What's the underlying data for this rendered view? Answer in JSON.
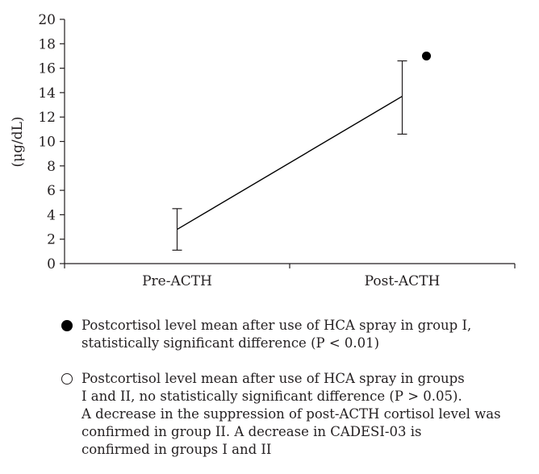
{
  "chart_data": {
    "type": "line",
    "categories": [
      "Pre-ACTH",
      "Post-ACTH"
    ],
    "series": [
      {
        "values": [
          2.8,
          13.7
        ],
        "error_low": [
          1.1,
          10.6
        ],
        "error_high": [
          4.5,
          16.6
        ],
        "color": "#000000"
      }
    ],
    "markers": [
      {
        "category": "Post-ACTH",
        "value": 17.0,
        "style": "filled-circle",
        "color": "#000000"
      }
    ],
    "ylabel": "(μg/dL)",
    "ylim": [
      0,
      20
    ],
    "yticks": [
      0,
      2,
      4,
      6,
      8,
      10,
      12,
      14,
      16,
      18,
      20
    ],
    "grid": false,
    "legend": "bottom",
    "legend_entries": [
      {
        "marker": "filled-circle",
        "text": "Postcortisol level mean after use of HCA spray in group I,\nstatistically significant difference (P < 0.01)"
      },
      {
        "marker": "open-circle",
        "text": "Postcortisol level mean after use of HCA spray in groups\nI and II, no statistically significant difference (P > 0.05).\nA decrease in the suppression of post-ACTH cortisol level was\nconfirmed in group II. A decrease in CADESI-03 is\nconfirmed in groups I and II"
      }
    ]
  }
}
